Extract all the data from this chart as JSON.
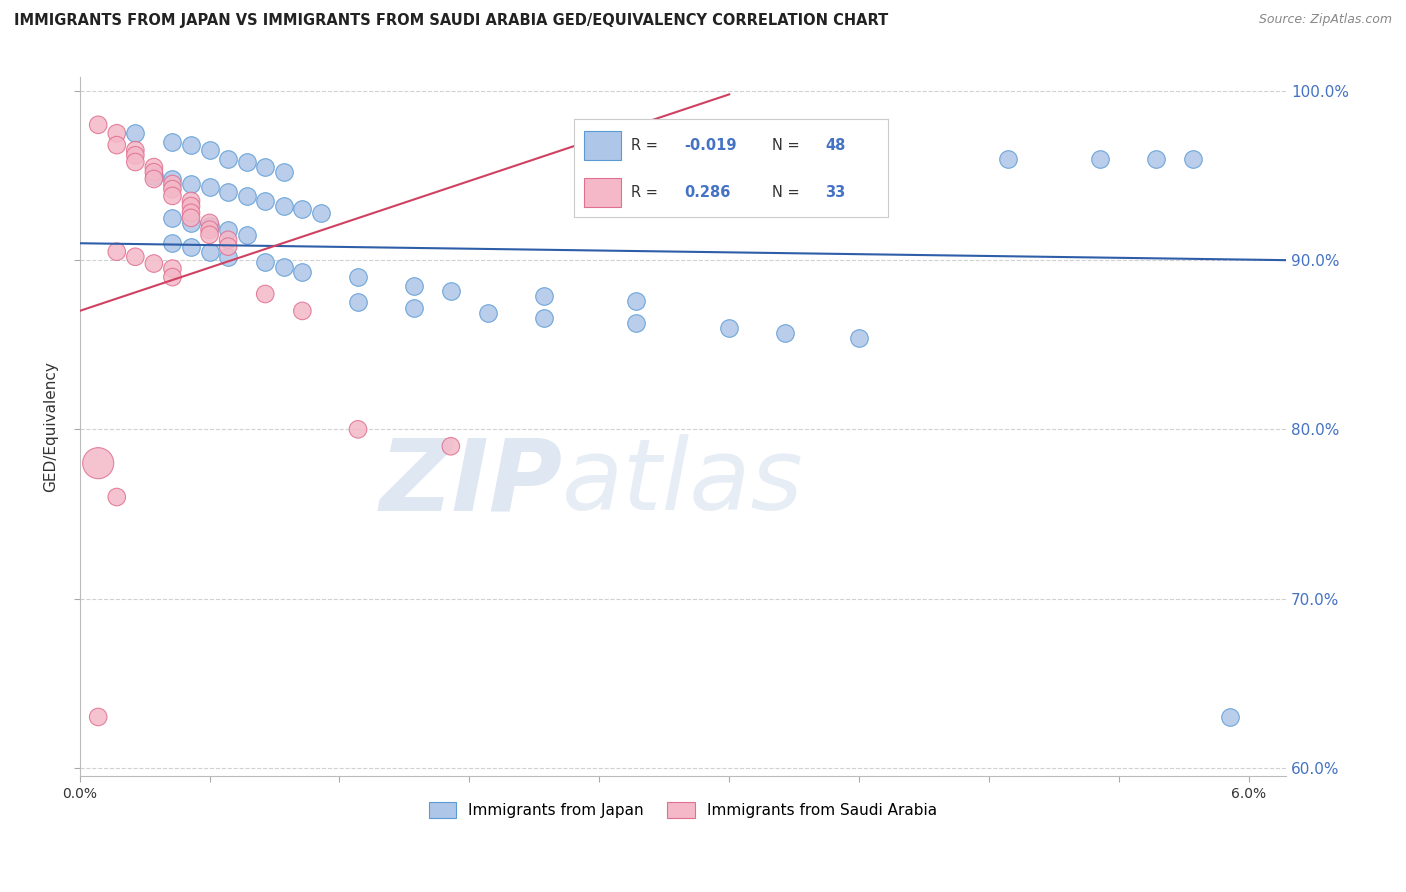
{
  "title": "IMMIGRANTS FROM JAPAN VS IMMIGRANTS FROM SAUDI ARABIA GED/EQUIVALENCY CORRELATION CHART",
  "source": "Source: ZipAtlas.com",
  "ylabel": "GED/Equivalency",
  "xlim": [
    0.0,
    0.065
  ],
  "ylim": [
    0.595,
    1.008
  ],
  "yticks": [
    0.6,
    0.7,
    0.8,
    0.9,
    1.0
  ],
  "ytick_labels": [
    "60.0%",
    "70.0%",
    "80.0%",
    "90.0%",
    "100.0%"
  ],
  "xtick_positions": [
    0.0,
    0.007,
    0.014,
    0.021,
    0.028,
    0.035,
    0.042,
    0.049,
    0.056,
    0.063
  ],
  "xtick_labels": [
    "0.0%",
    "",
    "",
    "",
    "",
    "",
    "",
    "",
    "",
    "6.0%"
  ],
  "japan_color": "#aec6e8",
  "saudi_color": "#f4b8c8",
  "japan_edge": "#5b9bd5",
  "saudi_edge": "#e07090",
  "trend_japan_color": "#2e5ea8",
  "trend_saudi_color": "#d04060",
  "watermark_zip": "ZIP",
  "watermark_atlas": "atlas",
  "japan_x": [
    0.003,
    0.005,
    0.006,
    0.007,
    0.008,
    0.009,
    0.01,
    0.011,
    0.004,
    0.005,
    0.006,
    0.007,
    0.008,
    0.009,
    0.01,
    0.011,
    0.012,
    0.013,
    0.005,
    0.006,
    0.007,
    0.008,
    0.009,
    0.005,
    0.006,
    0.007,
    0.008,
    0.01,
    0.011,
    0.012,
    0.015,
    0.018,
    0.02,
    0.025,
    0.03,
    0.015,
    0.018,
    0.022,
    0.025,
    0.03,
    0.035,
    0.038,
    0.042,
    0.05,
    0.055,
    0.058,
    0.06,
    0.062
  ],
  "japan_y": [
    0.975,
    0.97,
    0.968,
    0.965,
    0.96,
    0.958,
    0.955,
    0.952,
    0.95,
    0.948,
    0.945,
    0.943,
    0.94,
    0.938,
    0.935,
    0.932,
    0.93,
    0.928,
    0.925,
    0.922,
    0.92,
    0.918,
    0.915,
    0.91,
    0.908,
    0.905,
    0.902,
    0.899,
    0.896,
    0.893,
    0.89,
    0.885,
    0.882,
    0.879,
    0.876,
    0.875,
    0.872,
    0.869,
    0.866,
    0.863,
    0.86,
    0.857,
    0.854,
    0.96,
    0.96,
    0.96,
    0.96,
    0.63
  ],
  "saudi_x": [
    0.001,
    0.002,
    0.002,
    0.003,
    0.003,
    0.003,
    0.004,
    0.004,
    0.004,
    0.005,
    0.005,
    0.005,
    0.006,
    0.006,
    0.006,
    0.006,
    0.007,
    0.007,
    0.007,
    0.008,
    0.008,
    0.002,
    0.003,
    0.004,
    0.005,
    0.005,
    0.01,
    0.012,
    0.015,
    0.02,
    0.001,
    0.002,
    0.001
  ],
  "saudi_y": [
    0.98,
    0.975,
    0.968,
    0.965,
    0.962,
    0.958,
    0.955,
    0.952,
    0.948,
    0.945,
    0.942,
    0.938,
    0.935,
    0.932,
    0.928,
    0.925,
    0.922,
    0.918,
    0.915,
    0.912,
    0.908,
    0.905,
    0.902,
    0.898,
    0.895,
    0.89,
    0.88,
    0.87,
    0.8,
    0.79,
    0.78,
    0.76,
    0.63
  ],
  "saudi_large_idx": 30,
  "trend_japan_x0": 0.0,
  "trend_japan_x1": 0.065,
  "trend_japan_y0": 0.91,
  "trend_japan_y1": 0.9,
  "trend_saudi_x0": 0.0,
  "trend_saudi_x1": 0.035,
  "trend_saudi_y0": 0.87,
  "trend_saudi_y1": 0.998
}
